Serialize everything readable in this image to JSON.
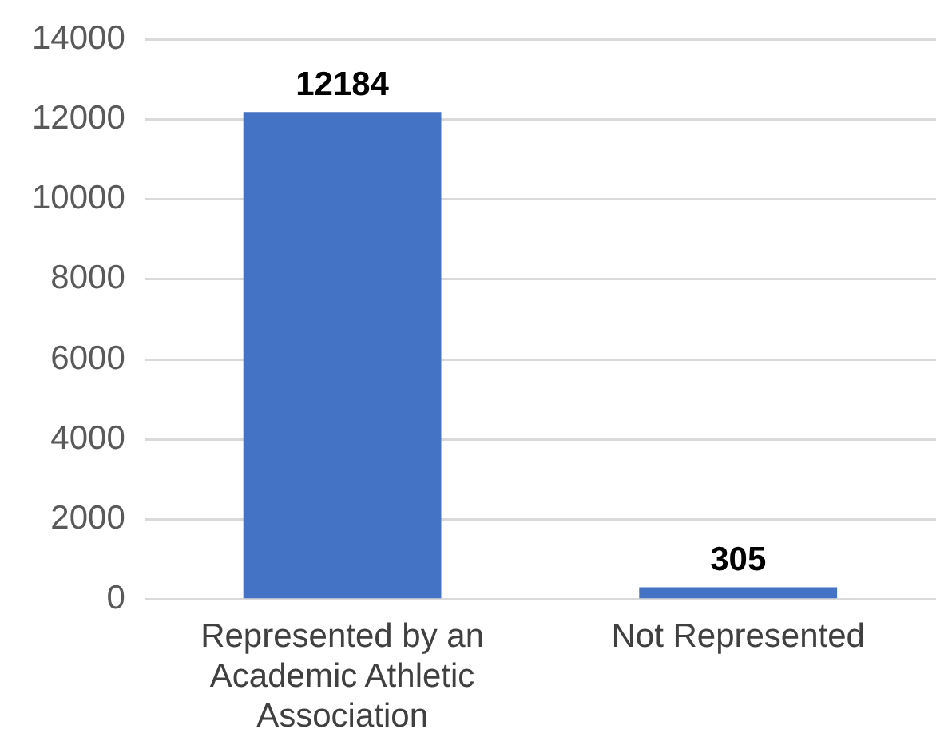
{
  "chart_data": {
    "type": "bar",
    "categories": [
      "Represented by an Academic Athletic Association",
      "Not Represented"
    ],
    "values": [
      12184,
      305
    ],
    "color": "#4472c4",
    "ylim": [
      0,
      14000
    ],
    "yticks": [
      0,
      2000,
      4000,
      6000,
      8000,
      10000,
      12000,
      14000
    ],
    "grid": "y",
    "data_labels": true,
    "legend": false
  }
}
